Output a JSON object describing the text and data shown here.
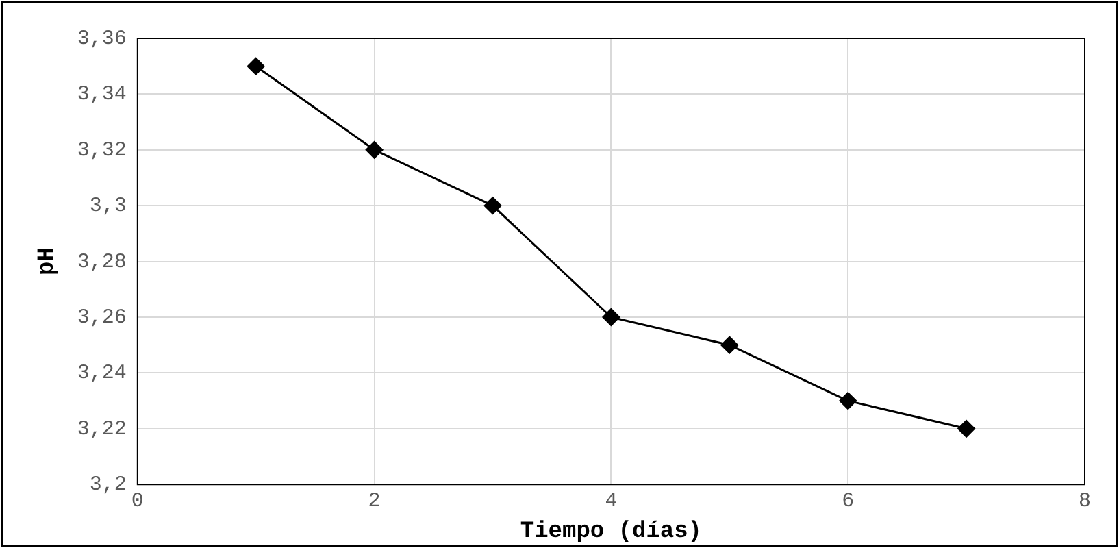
{
  "chart_data": {
    "type": "line",
    "xlabel": "Tiempo (días)",
    "ylabel": "pH",
    "x": [
      1,
      2,
      3,
      4,
      5,
      6,
      7
    ],
    "series": [
      {
        "color": "#000000",
        "values": [
          3.35,
          3.32,
          3.3,
          3.26,
          3.25,
          3.23,
          3.22
        ]
      }
    ],
    "xlim": [
      0,
      8
    ],
    "xticks": [
      0,
      2,
      4,
      6,
      8
    ],
    "ylim": [
      3.2,
      3.36
    ],
    "yticks": [
      {
        "value": 3.2,
        "label": "3,2"
      },
      {
        "value": 3.22,
        "label": "3,22"
      },
      {
        "value": 3.24,
        "label": "3,24"
      },
      {
        "value": 3.26,
        "label": "3,26"
      },
      {
        "value": 3.28,
        "label": "3,28"
      },
      {
        "value": 3.3,
        "label": "3,3"
      },
      {
        "value": 3.32,
        "label": "3,32"
      },
      {
        "value": 3.34,
        "label": "3,34"
      },
      {
        "value": 3.36,
        "label": "3,36"
      }
    ],
    "grid": true,
    "legend": false,
    "marker": "diamond",
    "line_style": "solid"
  }
}
